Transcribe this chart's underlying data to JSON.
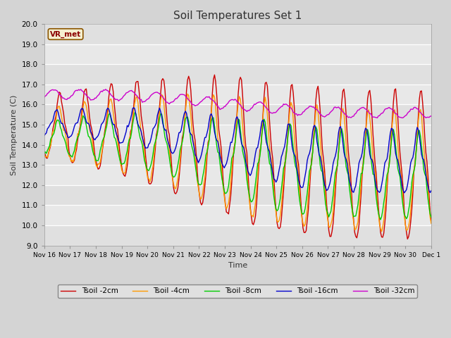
{
  "title": "Soil Temperatures Set 1",
  "xlabel": "Time",
  "ylabel": "Soil Temperature (C)",
  "ylim": [
    9.0,
    20.0
  ],
  "yticks": [
    9.0,
    10.0,
    11.0,
    12.0,
    13.0,
    14.0,
    15.0,
    16.0,
    17.0,
    18.0,
    19.0,
    20.0
  ],
  "series": [
    {
      "label": "Tsoil -2cm",
      "color": "#cc0000",
      "lw": 1.0
    },
    {
      "label": "Tsoil -4cm",
      "color": "#ff9900",
      "lw": 1.0
    },
    {
      "label": "Tsoil -8cm",
      "color": "#00cc00",
      "lw": 1.0
    },
    {
      "label": "Tsoil -16cm",
      "color": "#0000cc",
      "lw": 1.0
    },
    {
      "label": "Tsoil -32cm",
      "color": "#cc00cc",
      "lw": 1.0
    }
  ],
  "legend_label": "VR_met",
  "xtick_labels": [
    "Nov 16",
    "Nov 17",
    "Nov 18",
    "Nov 19",
    "Nov 20",
    "Nov 21",
    "Nov 22",
    "Nov 23",
    "Nov 24",
    "Nov 25",
    "Nov 26",
    "Nov 27",
    "Nov 28",
    "Nov 29",
    "Nov 30",
    "Dec 1"
  ]
}
